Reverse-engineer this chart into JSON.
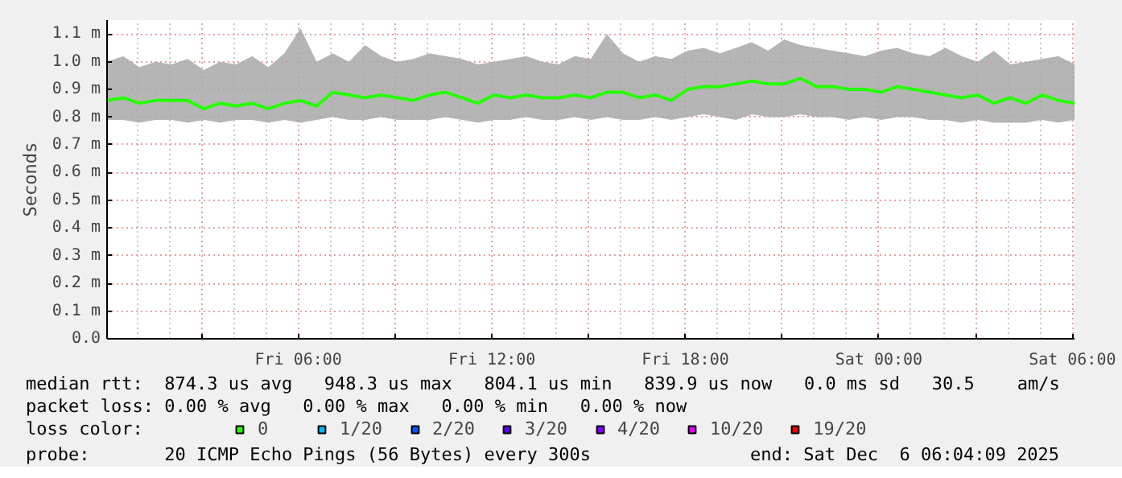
{
  "chart_data": {
    "type": "line",
    "ylabel": "Seconds",
    "legend_title": "loss color:",
    "legend": "bottom",
    "grid": true,
    "xlim": [
      "2025-12-05T00:04",
      "2025-12-06T06:04"
    ],
    "xticks": [
      {
        "value": "2025-12-05T03:00",
        "label": null
      },
      {
        "value": "2025-12-05T06:00",
        "label": "Fri 06:00"
      },
      {
        "value": "2025-12-05T09:00",
        "label": null
      },
      {
        "value": "2025-12-05T12:00",
        "label": "Fri 12:00"
      },
      {
        "value": "2025-12-05T15:00",
        "label": null
      },
      {
        "value": "2025-12-05T18:00",
        "label": "Fri 18:00"
      },
      {
        "value": "2025-12-05T21:00",
        "label": null
      },
      {
        "value": "2025-12-06T00:00",
        "label": "Sat 00:00"
      },
      {
        "value": "2025-12-06T03:00",
        "label": null
      },
      {
        "value": "2025-12-06T06:00",
        "label": "Sat 06:00"
      }
    ],
    "ylim": [
      0,
      1.15
    ],
    "yticks": [
      {
        "value": 0,
        "label": "0.0"
      },
      {
        "value": 0.1,
        "label": "0.1 m"
      },
      {
        "value": 0.2,
        "label": "0.2 m"
      },
      {
        "value": 0.3,
        "label": "0.3 m"
      },
      {
        "value": 0.4,
        "label": "0.4 m"
      },
      {
        "value": 0.5,
        "label": "0.5 m"
      },
      {
        "value": 0.6,
        "label": "0.6 m"
      },
      {
        "value": 0.7,
        "label": "0.7 m"
      },
      {
        "value": 0.8,
        "label": "0.8 m"
      },
      {
        "value": 0.9,
        "label": "0.9 m"
      },
      {
        "value": 1.0,
        "label": "1.0 m"
      },
      {
        "value": 1.1,
        "label": "1.1 m"
      }
    ],
    "series": [
      {
        "name": "0",
        "color": "#26ff00",
        "x": [
          "2025-12-05T00:04",
          "2025-12-05T00:34",
          "2025-12-05T01:04",
          "2025-12-05T01:34",
          "2025-12-05T02:04",
          "2025-12-05T02:34",
          "2025-12-05T03:04",
          "2025-12-05T03:34",
          "2025-12-05T04:04",
          "2025-12-05T04:34",
          "2025-12-05T05:04",
          "2025-12-05T05:34",
          "2025-12-05T06:04",
          "2025-12-05T06:34",
          "2025-12-05T07:04",
          "2025-12-05T07:34",
          "2025-12-05T08:04",
          "2025-12-05T08:34",
          "2025-12-05T09:04",
          "2025-12-05T09:34",
          "2025-12-05T10:04",
          "2025-12-05T10:34",
          "2025-12-05T11:04",
          "2025-12-05T11:34",
          "2025-12-05T12:04",
          "2025-12-05T12:34",
          "2025-12-05T13:04",
          "2025-12-05T13:34",
          "2025-12-05T14:04",
          "2025-12-05T14:34",
          "2025-12-05T15:04",
          "2025-12-05T15:34",
          "2025-12-05T16:04",
          "2025-12-05T16:34",
          "2025-12-05T17:04",
          "2025-12-05T17:34",
          "2025-12-05T18:04",
          "2025-12-05T18:34",
          "2025-12-05T19:04",
          "2025-12-05T19:34",
          "2025-12-05T20:04",
          "2025-12-05T20:34",
          "2025-12-05T21:04",
          "2025-12-05T21:34",
          "2025-12-05T22:04",
          "2025-12-05T22:34",
          "2025-12-05T23:04",
          "2025-12-05T23:34",
          "2025-12-06T00:04",
          "2025-12-06T00:34",
          "2025-12-06T01:04",
          "2025-12-06T01:34",
          "2025-12-06T02:04",
          "2025-12-06T02:34",
          "2025-12-06T03:04",
          "2025-12-06T03:34",
          "2025-12-06T04:04",
          "2025-12-06T04:34",
          "2025-12-06T05:04",
          "2025-12-06T05:34",
          "2025-12-06T06:04"
        ],
        "values": [
          0.86,
          0.87,
          0.85,
          0.86,
          0.86,
          0.86,
          0.83,
          0.85,
          0.84,
          0.85,
          0.83,
          0.85,
          0.86,
          0.84,
          0.89,
          0.88,
          0.87,
          0.88,
          0.87,
          0.86,
          0.88,
          0.89,
          0.87,
          0.85,
          0.88,
          0.87,
          0.88,
          0.87,
          0.87,
          0.88,
          0.87,
          0.89,
          0.89,
          0.87,
          0.88,
          0.86,
          0.9,
          0.91,
          0.91,
          0.92,
          0.93,
          0.92,
          0.92,
          0.94,
          0.91,
          0.91,
          0.9,
          0.9,
          0.89,
          0.91,
          0.9,
          0.89,
          0.88,
          0.87,
          0.88,
          0.85,
          0.87,
          0.85,
          0.88,
          0.86,
          0.85
        ],
        "lower": [
          0.79,
          0.79,
          0.78,
          0.79,
          0.79,
          0.78,
          0.79,
          0.78,
          0.79,
          0.79,
          0.78,
          0.79,
          0.78,
          0.79,
          0.8,
          0.79,
          0.79,
          0.8,
          0.79,
          0.79,
          0.79,
          0.8,
          0.79,
          0.78,
          0.79,
          0.79,
          0.8,
          0.79,
          0.79,
          0.8,
          0.79,
          0.8,
          0.79,
          0.79,
          0.8,
          0.79,
          0.8,
          0.81,
          0.8,
          0.79,
          0.81,
          0.8,
          0.8,
          0.81,
          0.8,
          0.8,
          0.79,
          0.8,
          0.79,
          0.8,
          0.8,
          0.79,
          0.79,
          0.78,
          0.79,
          0.78,
          0.78,
          0.78,
          0.79,
          0.78,
          0.79
        ],
        "upper": [
          1.0,
          1.02,
          0.98,
          1.0,
          0.99,
          1.01,
          0.97,
          1.0,
          0.99,
          1.02,
          0.98,
          1.03,
          1.12,
          1.0,
          1.03,
          1.0,
          1.06,
          1.02,
          1.0,
          1.01,
          1.03,
          1.02,
          1.01,
          0.99,
          1.0,
          1.01,
          1.02,
          1.0,
          0.99,
          1.02,
          1.01,
          1.1,
          1.03,
          1.0,
          1.02,
          1.01,
          1.04,
          1.05,
          1.03,
          1.05,
          1.07,
          1.04,
          1.08,
          1.06,
          1.05,
          1.04,
          1.03,
          1.02,
          1.04,
          1.05,
          1.03,
          1.02,
          1.05,
          1.02,
          1.0,
          1.04,
          0.99,
          1.0,
          1.01,
          1.02,
          0.99
        ]
      },
      {
        "name": "1/20",
        "color": "#00b8ff"
      },
      {
        "name": "2/20",
        "color": "#0059ff"
      },
      {
        "name": "3/20",
        "color": "#5e00ff"
      },
      {
        "name": "4/20",
        "color": "#7e00ff"
      },
      {
        "name": "10/20",
        "color": "#dd00ff"
      },
      {
        "name": "19/20",
        "color": "#ff0000"
      }
    ],
    "annotations": [
      "median rtt:  874.3 us avg   948.3 us max   804.1 us min   839.9 us now   0.0 ms sd   30.5    am/s",
      "packet loss: 0.00 % avg   0.00 % max   0.00 % min   0.00 % now",
      "probe:       20 ICMP Echo Pings (56 Bytes) every 300s",
      "end: Sat Dec  6 06:04:09 2025"
    ]
  }
}
